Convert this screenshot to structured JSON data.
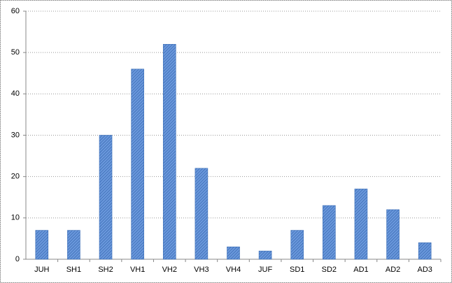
{
  "chart_data": {
    "type": "bar",
    "categories": [
      "JUH",
      "SH1",
      "SH2",
      "VH1",
      "VH2",
      "VH3",
      "VH4",
      "JUF",
      "SD1",
      "SD2",
      "AD1",
      "AD2",
      "AD3"
    ],
    "values": [
      7,
      7,
      30,
      46,
      52,
      22,
      3,
      2,
      7,
      13,
      17,
      12,
      4
    ],
    "color": "#4a7ec8",
    "ylim": [
      0,
      60
    ],
    "yticks": [
      0,
      10,
      20,
      30,
      40,
      50,
      60
    ],
    "grid": true
  }
}
